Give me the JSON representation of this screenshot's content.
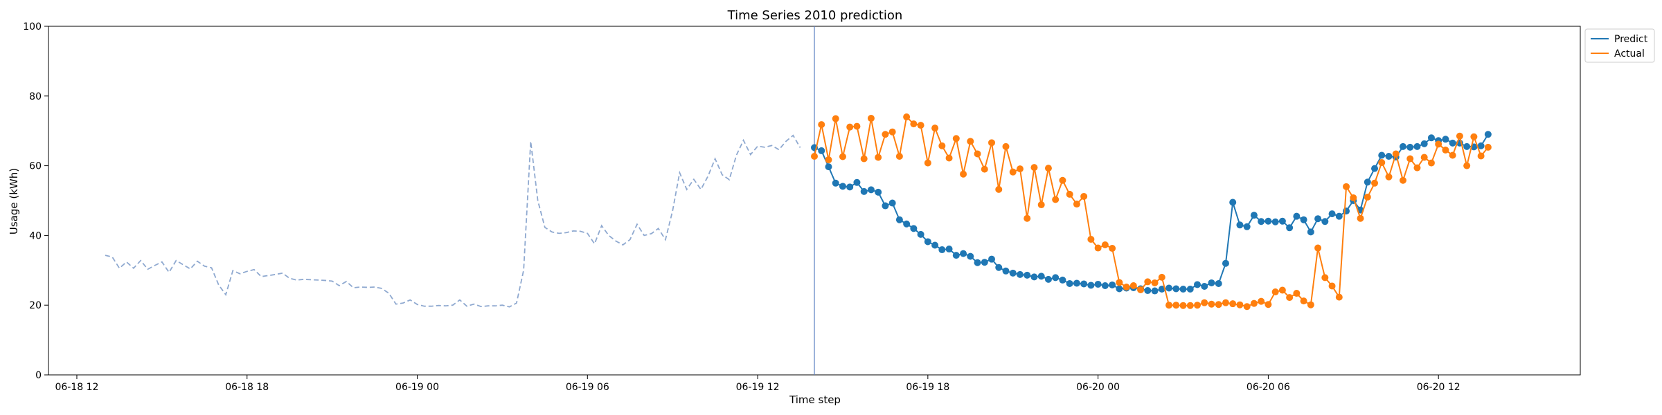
{
  "chart_data": {
    "type": "line",
    "title": "Time Series 2010 prediction",
    "xlabel": "Time step",
    "ylabel": "Usage (kWh)",
    "ylim": [
      0,
      100
    ],
    "xlim": [
      "2010-06-18T11:00",
      "2010-06-20T17:00"
    ],
    "grid": false,
    "legend_position": "outside top-right",
    "x_ticks": [
      {
        "t": "2010-06-18T12:00",
        "label": "06-18 12"
      },
      {
        "t": "2010-06-18T18:00",
        "label": "06-18 18"
      },
      {
        "t": "2010-06-19T00:00",
        "label": "06-19 00"
      },
      {
        "t": "2010-06-19T06:00",
        "label": "06-19 06"
      },
      {
        "t": "2010-06-19T12:00",
        "label": "06-19 12"
      },
      {
        "t": "2010-06-19T18:00",
        "label": "06-19 18"
      },
      {
        "t": "2010-06-20T00:00",
        "label": "06-20 00"
      },
      {
        "t": "2010-06-20T06:00",
        "label": "06-20 06"
      },
      {
        "t": "2010-06-20T12:00",
        "label": "06-20 12"
      }
    ],
    "y_ticks": [
      0,
      20,
      40,
      60,
      80,
      100
    ],
    "forecast_start": "2010-06-19T14:00",
    "time_step_minutes": 15,
    "history": {
      "start": "2010-06-18T13:00",
      "color": "#8fa9d0",
      "values": [
        34.3,
        33.8,
        30.6,
        32.4,
        30.6,
        32.8,
        30.3,
        31.4,
        32.4,
        29.4,
        32.8,
        31.6,
        30.4,
        32.6,
        31.2,
        30.7,
        25.8,
        23.0,
        29.9,
        29.0,
        29.7,
        30.2,
        28.2,
        28.5,
        28.8,
        29.2,
        27.7,
        27.2,
        27.4,
        27.3,
        27.2,
        27.1,
        26.9,
        25.6,
        26.8,
        25.0,
        25.2,
        25.1,
        25.2,
        24.8,
        23.4,
        20.3,
        20.6,
        21.5,
        20.2,
        19.7,
        19.7,
        19.9,
        19.8,
        20.0,
        21.5,
        19.7,
        20.3,
        19.6,
        19.8,
        19.8,
        20.0,
        19.5,
        20.6,
        30.0,
        67.0,
        50.0,
        42.3,
        41.0,
        40.6,
        40.8,
        41.3,
        41.2,
        40.6,
        37.6,
        42.8,
        40.0,
        38.4,
        37.3,
        38.8,
        43.2,
        40.0,
        40.5,
        42.0,
        38.8,
        47.0,
        58.0,
        53.2,
        56.1,
        53.2,
        57.0,
        62.0,
        57.4,
        56.0,
        63.0,
        67.3,
        63.2,
        65.6,
        65.3,
        65.8,
        64.6,
        67.0,
        68.7,
        65.2
      ]
    },
    "series": [
      {
        "name": "Predict",
        "color": "#1f77b4",
        "values": [
          65.2,
          64.3,
          59.7,
          55.0,
          54.1,
          53.9,
          55.2,
          52.6,
          53.1,
          52.4,
          48.5,
          49.3,
          44.5,
          43.3,
          42.0,
          40.3,
          38.2,
          37.2,
          35.9,
          36.1,
          34.3,
          34.8,
          34.0,
          32.2,
          32.3,
          33.2,
          30.8,
          29.8,
          29.2,
          28.8,
          28.6,
          28.1,
          28.3,
          27.4,
          27.9,
          27.2,
          26.2,
          26.3,
          26.1,
          25.7,
          26.0,
          25.6,
          25.8,
          24.7,
          24.9,
          25.0,
          24.7,
          24.2,
          24.1,
          24.6,
          24.9,
          24.7,
          24.6,
          24.6,
          25.9,
          25.4,
          26.4,
          26.2,
          32.0,
          49.5,
          43.0,
          42.5,
          45.8,
          44.0,
          44.1,
          43.9,
          44.1,
          42.2,
          45.5,
          44.5,
          41.0,
          44.8,
          44.0,
          46.2,
          45.5,
          47.0,
          50.0,
          47.3,
          55.3,
          59.2,
          63.0,
          62.7,
          62.5,
          65.5,
          65.3,
          65.5,
          66.3,
          68.0,
          67.2,
          67.6,
          66.5,
          66.5,
          65.5,
          65.4,
          65.7,
          69.0
        ]
      },
      {
        "name": "Actual",
        "color": "#ff7f0e",
        "values": [
          62.7,
          71.8,
          61.7,
          73.5,
          62.6,
          71.1,
          71.3,
          62.0,
          73.6,
          62.4,
          69.0,
          69.7,
          62.7,
          74.0,
          72.0,
          71.6,
          60.8,
          70.8,
          65.7,
          62.2,
          67.8,
          57.6,
          67.0,
          63.4,
          59.0,
          66.6,
          53.2,
          65.5,
          58.2,
          59.1,
          44.9,
          59.5,
          48.8,
          59.3,
          50.3,
          55.8,
          51.8,
          49.0,
          51.2,
          38.9,
          36.4,
          37.3,
          36.3,
          26.5,
          25.2,
          25.6,
          24.4,
          26.7,
          26.4,
          28.0,
          20.0,
          20.0,
          19.9,
          19.9,
          20.0,
          20.7,
          20.3,
          20.2,
          20.7,
          20.4,
          20.1,
          19.6,
          20.5,
          21.1,
          20.2,
          23.8,
          24.3,
          22.2,
          23.4,
          21.2,
          20.1,
          36.4,
          27.9,
          25.5,
          22.3,
          54.0,
          50.8,
          44.9,
          51.0,
          55.0,
          60.9,
          56.8,
          63.4,
          55.8,
          62.0,
          59.4,
          62.4,
          60.8,
          66.2,
          64.5,
          63.0,
          68.5,
          60.0,
          68.3,
          62.8,
          65.3
        ]
      }
    ]
  }
}
